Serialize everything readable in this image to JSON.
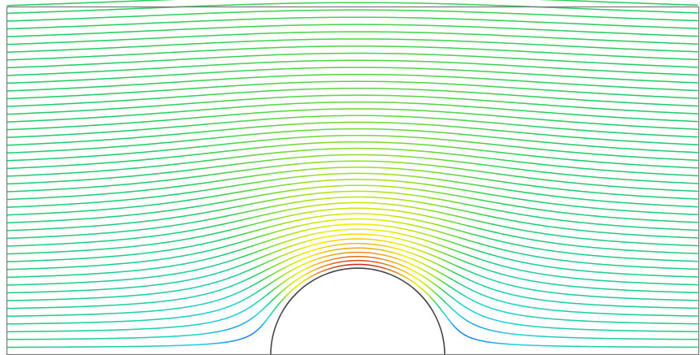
{
  "diagram": {
    "type": "potential-flow-streamlines-around-cylinder",
    "frame_color": "#777777",
    "cylinder_outline_color": "#444444",
    "streamline_count": 46,
    "colormap": [
      {
        "t": 0.0,
        "color": "#0014d0"
      },
      {
        "t": 0.1,
        "color": "#1e78f0"
      },
      {
        "t": 0.22,
        "color": "#20d2dc"
      },
      {
        "t": 0.38,
        "color": "#22cc66"
      },
      {
        "t": 0.52,
        "color": "#9ce01e"
      },
      {
        "t": 0.68,
        "color": "#f2f000"
      },
      {
        "t": 0.82,
        "color": "#f0a020"
      },
      {
        "t": 1.0,
        "color": "#c81e1e"
      }
    ]
  }
}
